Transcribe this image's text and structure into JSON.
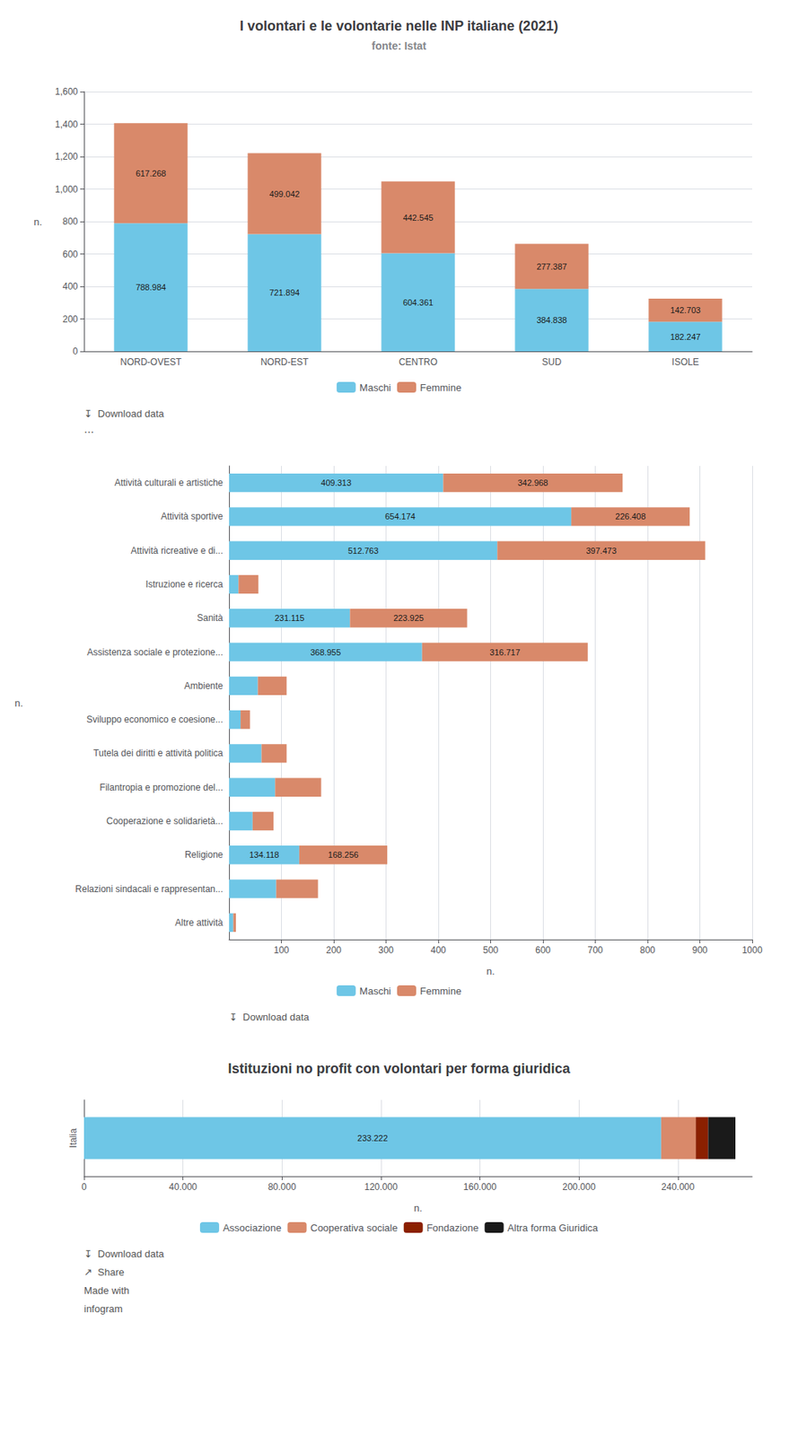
{
  "chart_data": [
    {
      "type": "bar",
      "title": "I volontari e le volontarie nelle INP italiane (2021)",
      "subtitle": "fonte: Istat",
      "categories": [
        "NORD-OVEST",
        "NORD-EST",
        "CENTRO",
        "SUD",
        "ISOLE"
      ],
      "series": [
        {
          "name": "Maschi",
          "color": "#6ec6e6",
          "values": [
            788.984,
            721.894,
            604.361,
            384.838,
            182.247
          ]
        },
        {
          "name": "Femmine",
          "color": "#d9896a",
          "values": [
            617.268,
            499.042,
            442.545,
            277.387,
            142.703
          ]
        }
      ],
      "ylabel": "n.",
      "ylim": [
        0,
        1600
      ],
      "yticks": [
        0,
        200,
        400,
        600,
        800,
        {
          "value": 1000,
          "label": "1,000"
        },
        {
          "value": 1200,
          "label": "1,200"
        },
        {
          "value": 1400,
          "label": "1,400"
        },
        {
          "value": 1600,
          "label": "1,600"
        }
      ],
      "stacked": true,
      "data_labels": true,
      "grid": true,
      "legend": "bottom",
      "annotations": [
        "↧  Download data",
        "⋯"
      ]
    },
    {
      "type": "bar",
      "orientation": "horizontal",
      "categories": [
        "Attività culturali e artistiche",
        "Attività sportive",
        "Attività ricreative e di...",
        "Istruzione e ricerca",
        "Sanità",
        "Assistenza sociale e protezione...",
        "Ambiente",
        "Sviluppo economico e coesione...",
        "Tutela dei diritti e attività politica",
        "Filantropia e promozione del...",
        "Cooperazione e solidarietà...",
        "Religione",
        "Relazioni sindacali e rappresentan...",
        "Altre attività"
      ],
      "series": [
        {
          "name": "Maschi",
          "color": "#6ec6e6",
          "values": [
            409.313,
            654.174,
            512.763,
            18.0,
            231.115,
            368.955,
            55.0,
            22.0,
            62.0,
            88.0,
            45.0,
            134.118,
            90.0,
            8.0
          ],
          "value_labels": [
            "409.313",
            "654.174",
            "512.763",
            null,
            "231.115",
            "368.955",
            null,
            null,
            null,
            null,
            null,
            "134.118",
            null,
            null
          ]
        },
        {
          "name": "Femmine",
          "color": "#d9896a",
          "values": [
            342.968,
            226.408,
            397.473,
            38.0,
            223.925,
            316.717,
            55.0,
            18.0,
            48.0,
            88.0,
            40.0,
            168.256,
            80.0,
            5.0
          ],
          "value_labels": [
            "342.968",
            "226.408",
            "397.473",
            null,
            "223.925",
            "316.717",
            null,
            null,
            null,
            null,
            null,
            "168.256",
            null,
            null
          ]
        }
      ],
      "xlabel": "n.",
      "ylabel": "n.",
      "xlim": [
        0,
        1000
      ],
      "xticks": [
        100,
        200,
        300,
        400,
        500,
        600,
        700,
        800,
        900,
        1000
      ],
      "stacked": true,
      "data_labels": true,
      "grid": true,
      "legend": "bottom",
      "annotations": [
        "↧  Download data"
      ]
    },
    {
      "type": "bar",
      "orientation": "horizontal",
      "title": "Istituzioni no profit con volontari per forma giuridica",
      "categories": [
        "Italia"
      ],
      "series": [
        {
          "name": "Associazione",
          "color": "#6ec6e6",
          "values": [
            233222
          ],
          "value_labels": [
            "233.222"
          ]
        },
        {
          "name": "Cooperativa sociale",
          "color": "#d9896a",
          "values": [
            14000
          ],
          "value_labels": [
            null
          ]
        },
        {
          "name": "Fondazione",
          "color": "#8b2000",
          "values": [
            5000
          ],
          "value_labels": [
            null
          ]
        },
        {
          "name": "Altra forma Giuridica",
          "color": "#1a1a1a",
          "values": [
            11000
          ],
          "value_labels": [
            null
          ]
        }
      ],
      "xlabel": "n.",
      "xlim": [
        0,
        270000
      ],
      "xticks": [
        0,
        {
          "value": 40000,
          "label": "40.000"
        },
        {
          "value": 80000,
          "label": "80.000"
        },
        {
          "value": 120000,
          "label": "120.000"
        },
        {
          "value": 160000,
          "label": "160.000"
        },
        {
          "value": 200000,
          "label": "200.000"
        },
        {
          "value": 240000,
          "label": "240.000"
        }
      ],
      "stacked": true,
      "data_labels": true,
      "grid": true,
      "legend": "bottom",
      "annotations": [
        "↧  Download data",
        "↗  Share",
        "Made with",
        "infogram"
      ]
    }
  ]
}
